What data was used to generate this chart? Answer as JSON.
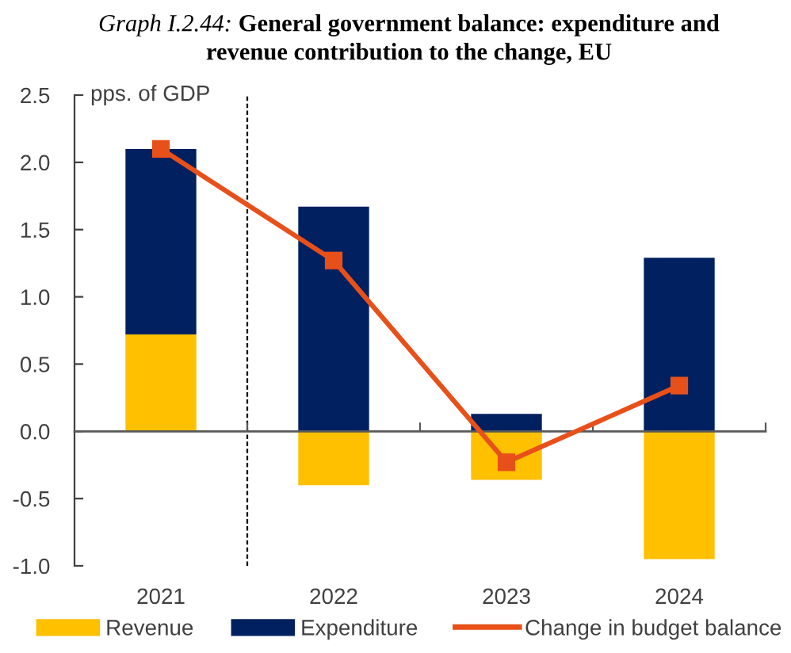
{
  "chart_data": {
    "type": "bar",
    "title": "Graph I.2.44: General government balance: expenditure and revenue contribution to the change, EU",
    "ylabel": "pps. of GDP",
    "x": [
      2021,
      2022,
      2023,
      2024
    ],
    "stacked": true,
    "series": [
      {
        "name": "Revenue",
        "color": "#ffc000",
        "values": [
          0.72,
          -0.4,
          -0.36,
          -0.95
        ]
      },
      {
        "name": "Expenditure",
        "color": "#002060",
        "values": [
          1.38,
          1.67,
          0.13,
          1.29
        ]
      },
      {
        "name": "Change in budget balance",
        "type": "line",
        "color": "#e8501a",
        "marker": "square",
        "values": [
          2.1,
          1.27,
          -0.23,
          0.34
        ]
      }
    ],
    "xlim": [
      2020.5,
      2024.5
    ],
    "xticks": [
      2021,
      2022,
      2023,
      2024,
      {
        "value": 2021.5,
        "label": null
      },
      {
        "value": 2022.5,
        "label": null
      },
      {
        "value": 2023.5,
        "label": null
      },
      {
        "value": 2024.5,
        "label": null
      }
    ],
    "ylim": [
      -1.0,
      2.5
    ],
    "yticks": [
      {
        "value": -1.0,
        "label": "-1.0"
      },
      {
        "value": -0.5,
        "label": "-0.5"
      },
      {
        "value": 0.0,
        "label": "0.0"
      },
      {
        "value": 0.5,
        "label": "0.5"
      },
      {
        "value": 1.0,
        "label": "1.0"
      },
      {
        "value": 1.5,
        "label": "1.5"
      },
      {
        "value": 2.0,
        "label": "2.0"
      },
      {
        "value": 2.5,
        "label": "2.5"
      }
    ],
    "ref_lines": [
      {
        "axis": "x",
        "value": 2021.5,
        "color": "#000000",
        "line_style": "dashed"
      }
    ],
    "legend": "bottom"
  }
}
